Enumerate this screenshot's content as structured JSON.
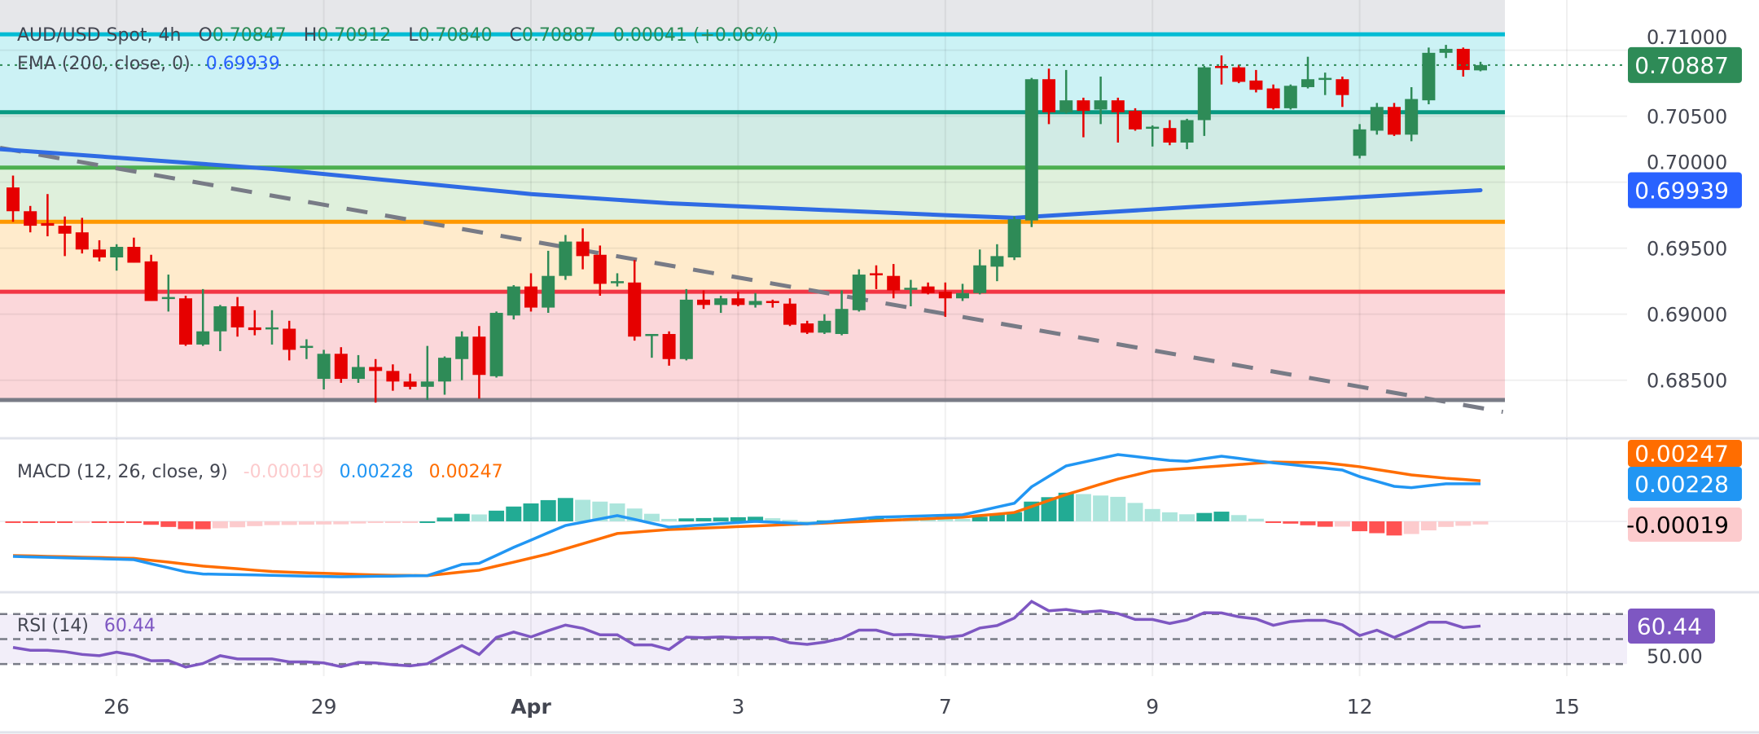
{
  "header": {
    "symbol": "AUD/USD Spot, 4h",
    "o_label": "O",
    "o_value": "0.70847",
    "h_label": "H",
    "h_value": "0.70912",
    "l_label": "L",
    "l_value": "0.70840",
    "c_label": "C",
    "c_value": "0.70887",
    "change": "0.00041 (+0.06%)"
  },
  "ema_legend": {
    "label": "EMA (200, close, 0)",
    "value": "0.69939"
  },
  "macd_legend": {
    "label": "MACD (12, 26, close, 9)",
    "hist": "-0.00019",
    "macd": "0.00228",
    "signal": "0.00247"
  },
  "rsi_legend": {
    "label": "RSI (14)",
    "value": "60.44"
  },
  "price_axis": {
    "ticks": [
      "0.71000",
      "0.70500",
      "0.70000",
      "0.69500",
      "0.69000",
      "0.68500"
    ],
    "last_price_label": "0.70887",
    "ema_label": "0.69939"
  },
  "macd_axis": {
    "signal_label": "0.00247",
    "macd_label": "0.00228",
    "hist_label": "-0.00019"
  },
  "rsi_axis": {
    "mid_tick": "50.00",
    "value_label": "60.44"
  },
  "time_axis": {
    "labels": [
      {
        "text": "26",
        "index": 6
      },
      {
        "text": "29",
        "index": 18
      },
      {
        "text": "Apr",
        "index": 30
      },
      {
        "text": "3",
        "index": 42
      },
      {
        "text": "7",
        "index": 54
      },
      {
        "text": "9",
        "index": 66
      },
      {
        "text": "12",
        "index": 78
      },
      {
        "text": "15",
        "index": 90
      }
    ]
  },
  "colors": {
    "up": "#2e8b57",
    "down": "#e60000",
    "ema": "#2f6be4",
    "trendline": "#787b86",
    "macd": "#2196f3",
    "signal": "#ff6d00",
    "rsi": "#7e57c2",
    "hist_up_strong": "#22ab94",
    "hist_up_weak": "#ace5dc",
    "hist_down_strong": "#ff5252",
    "hist_down_weak": "#fccbcd",
    "last_price_bg": "#2e8b57",
    "ema_bg": "#2962ff",
    "rsi_bg": "#7e57c2",
    "hist_bg": "#fccbcd"
  },
  "chart_data": [
    {
      "type": "candlestick",
      "title": "AUD/USD Spot, 4h",
      "ylim": [
        0.6806,
        0.7138
      ],
      "grid": true,
      "ohlc": [
        [
          0.6996,
          0.7005,
          0.697,
          0.6978
        ],
        [
          0.6978,
          0.6982,
          0.6962,
          0.6967
        ],
        [
          0.6969,
          0.6991,
          0.6959,
          0.6967
        ],
        [
          0.6967,
          0.6974,
          0.6944,
          0.6961
        ],
        [
          0.6962,
          0.6973,
          0.6946,
          0.6949
        ],
        [
          0.6949,
          0.6956,
          0.694,
          0.6943
        ],
        [
          0.6943,
          0.6953,
          0.6933,
          0.6951
        ],
        [
          0.6951,
          0.6958,
          0.6939,
          0.6939
        ],
        [
          0.694,
          0.6945,
          0.691,
          0.691
        ],
        [
          0.6912,
          0.693,
          0.6902,
          0.6913
        ],
        [
          0.6912,
          0.6914,
          0.6876,
          0.6877
        ],
        [
          0.6877,
          0.6919,
          0.6876,
          0.6887
        ],
        [
          0.6887,
          0.6907,
          0.6872,
          0.6906
        ],
        [
          0.6906,
          0.6913,
          0.6883,
          0.689
        ],
        [
          0.689,
          0.6903,
          0.6884,
          0.6888
        ],
        [
          0.6889,
          0.6903,
          0.6877,
          0.689
        ],
        [
          0.6889,
          0.6895,
          0.6865,
          0.6873
        ],
        [
          0.6875,
          0.6881,
          0.6866,
          0.6876
        ],
        [
          0.6851,
          0.6873,
          0.6843,
          0.687
        ],
        [
          0.687,
          0.6875,
          0.6848,
          0.6851
        ],
        [
          0.6851,
          0.6869,
          0.6848,
          0.686
        ],
        [
          0.686,
          0.6866,
          0.6833,
          0.6857
        ],
        [
          0.6857,
          0.6862,
          0.6842,
          0.6849
        ],
        [
          0.6849,
          0.6855,
          0.6843,
          0.6845
        ],
        [
          0.6845,
          0.6876,
          0.6835,
          0.6849
        ],
        [
          0.6849,
          0.6868,
          0.6839,
          0.6867
        ],
        [
          0.6866,
          0.6887,
          0.685,
          0.6883
        ],
        [
          0.6883,
          0.6891,
          0.6836,
          0.6854
        ],
        [
          0.6853,
          0.6902,
          0.6852,
          0.6901
        ],
        [
          0.6899,
          0.6922,
          0.6896,
          0.6921
        ],
        [
          0.6921,
          0.6931,
          0.6902,
          0.6905
        ],
        [
          0.6905,
          0.6948,
          0.6901,
          0.6929
        ],
        [
          0.6929,
          0.696,
          0.6926,
          0.6955
        ],
        [
          0.6955,
          0.6965,
          0.6934,
          0.6944
        ],
        [
          0.6945,
          0.6952,
          0.6914,
          0.6923
        ],
        [
          0.6924,
          0.6931,
          0.6921,
          0.6925
        ],
        [
          0.6924,
          0.6941,
          0.688,
          0.6883
        ],
        [
          0.6884,
          0.6885,
          0.6867,
          0.6885
        ],
        [
          0.6885,
          0.6887,
          0.6861,
          0.6866
        ],
        [
          0.6866,
          0.6919,
          0.6865,
          0.6911
        ],
        [
          0.6911,
          0.6918,
          0.6904,
          0.6907
        ],
        [
          0.6907,
          0.6914,
          0.6901,
          0.6912
        ],
        [
          0.6912,
          0.6917,
          0.6906,
          0.6907
        ],
        [
          0.6907,
          0.6916,
          0.6905,
          0.691
        ],
        [
          0.691,
          0.6911,
          0.6905,
          0.6909
        ],
        [
          0.6908,
          0.6912,
          0.6891,
          0.6892
        ],
        [
          0.6893,
          0.6895,
          0.6885,
          0.6886
        ],
        [
          0.6886,
          0.69,
          0.6885,
          0.6895
        ],
        [
          0.6885,
          0.6918,
          0.6884,
          0.6904
        ],
        [
          0.6903,
          0.6934,
          0.6902,
          0.693
        ],
        [
          0.6931,
          0.6937,
          0.6919,
          0.693
        ],
        [
          0.6929,
          0.6938,
          0.6912,
          0.6918
        ],
        [
          0.6919,
          0.6926,
          0.6906,
          0.692
        ],
        [
          0.6921,
          0.6924,
          0.6915,
          0.6916
        ],
        [
          0.6917,
          0.6924,
          0.6898,
          0.6912
        ],
        [
          0.6912,
          0.6923,
          0.691,
          0.6916
        ],
        [
          0.6916,
          0.6949,
          0.6915,
          0.6937
        ],
        [
          0.6936,
          0.6953,
          0.6925,
          0.6944
        ],
        [
          0.6943,
          0.6974,
          0.6941,
          0.6972
        ],
        [
          0.6971,
          0.7079,
          0.6966,
          0.7078
        ],
        [
          0.7078,
          0.7086,
          0.7044,
          0.7053
        ],
        [
          0.7053,
          0.7085,
          0.7052,
          0.7062
        ],
        [
          0.7062,
          0.7064,
          0.7034,
          0.7054
        ],
        [
          0.7055,
          0.708,
          0.7044,
          0.7062
        ],
        [
          0.7062,
          0.7064,
          0.703,
          0.7053
        ],
        [
          0.7054,
          0.7056,
          0.7039,
          0.704
        ],
        [
          0.7041,
          0.7043,
          0.7027,
          0.7042
        ],
        [
          0.7041,
          0.7047,
          0.7028,
          0.703
        ],
        [
          0.703,
          0.7048,
          0.7025,
          0.7047
        ],
        [
          0.7047,
          0.7088,
          0.7035,
          0.7087
        ],
        [
          0.7088,
          0.7096,
          0.7074,
          0.7087
        ],
        [
          0.7087,
          0.7089,
          0.7075,
          0.7076
        ],
        [
          0.7077,
          0.7085,
          0.7068,
          0.707
        ],
        [
          0.7071,
          0.7074,
          0.7055,
          0.7056
        ],
        [
          0.7056,
          0.7074,
          0.7055,
          0.7073
        ],
        [
          0.7072,
          0.7095,
          0.7071,
          0.7078
        ],
        [
          0.7078,
          0.7083,
          0.7066,
          0.7079
        ],
        [
          0.7078,
          0.708,
          0.7057,
          0.7066
        ],
        [
          0.702,
          0.7044,
          0.7018,
          0.704
        ],
        [
          0.7039,
          0.706,
          0.7036,
          0.7057
        ],
        [
          0.7057,
          0.706,
          0.7035,
          0.7036
        ],
        [
          0.7036,
          0.7072,
          0.7031,
          0.7063
        ],
        [
          0.7062,
          0.7102,
          0.7059,
          0.7098
        ],
        [
          0.7098,
          0.7104,
          0.7094,
          0.7101
        ],
        [
          0.7101,
          0.7102,
          0.708,
          0.7085
        ],
        [
          0.70847,
          0.70912,
          0.7084,
          0.70887
        ]
      ],
      "ema200": [
        [
          -0.75,
          0.7025
        ],
        [
          15,
          0.701
        ],
        [
          30,
          0.6991
        ],
        [
          38,
          0.6984
        ],
        [
          54,
          0.6975
        ],
        [
          58,
          0.6973
        ],
        [
          68,
          0.6981
        ],
        [
          81,
          0.6991
        ],
        [
          85,
          0.69939
        ]
      ],
      "trendline": [
        [
          -0.75,
          0.7026
        ],
        [
          86.3,
          0.6826
        ]
      ],
      "last_price": 0.70887,
      "fib_levels": [
        {
          "price": 0.7112,
          "color": "#00bcd4",
          "fill_above": "#e6e7ea"
        },
        {
          "price": 0.7053,
          "color": "#089981",
          "fill_above": "#ccf2f5"
        },
        {
          "price": 0.7011,
          "color": "#4caf50",
          "fill_above": "#d1ebe5"
        },
        {
          "price": 0.697,
          "color": "#ff9800",
          "fill_above": "#dff0dc"
        },
        {
          "price": 0.6917,
          "color": "#f23645",
          "fill_above": "#ffebcc"
        },
        {
          "price": 0.6835,
          "color": "#787b86",
          "fill_above": "#fbd7da"
        }
      ]
    },
    {
      "type": "macd",
      "ylim": [
        -0.00436,
        0.00505
      ],
      "macd": [
        -0.00213,
        -0.00216,
        -0.00219,
        -0.00222,
        -0.00224,
        -0.00227,
        -0.0023,
        -0.00233,
        -0.00258,
        -0.00282,
        -0.00307,
        -0.0032,
        -0.00322,
        -0.00324,
        -0.00326,
        -0.00328,
        -0.00331,
        -0.00333,
        -0.00335,
        -0.00337,
        -0.00336,
        -0.00334,
        -0.00333,
        -0.00331,
        -0.0033,
        -0.00296,
        -0.00262,
        -0.00255,
        -0.00207,
        -0.00158,
        -0.00114,
        -0.00069,
        -0.00025,
        -5e-05,
        0.00015,
        0.00035,
        0.00012,
        -0.00012,
        -0.00035,
        -0.00028,
        -0.00021,
        -0.00014,
        -7e-05,
        0,
        -5e-05,
        -0.0001,
        -0.00015,
        -5e-05,
        5e-05,
        0.00015,
        0.00025,
        0.00028,
        0.00031,
        0.00034,
        0.00037,
        0.0004,
        0.00063,
        0.00087,
        0.0011,
        0.0021,
        0.00274,
        0.00337,
        0.0036,
        0.00383,
        0.00406,
        0.00394,
        0.00382,
        0.0037,
        0.00365,
        0.00381,
        0.00396,
        0.00383,
        0.00369,
        0.00356,
        0.00345,
        0.00334,
        0.00323,
        0.00312,
        0.00272,
        0.00243,
        0.00213,
        0.00205,
        0.00217,
        0.00228,
        0.00228,
        0.00228
      ],
      "signal": [
        -0.00208,
        -0.0021,
        -0.00213,
        -0.00215,
        -0.00218,
        -0.0022,
        -0.00223,
        -0.00225,
        -0.00237,
        -0.00248,
        -0.0026,
        -0.00272,
        -0.0028,
        -0.00288,
        -0.00297,
        -0.00305,
        -0.00309,
        -0.00313,
        -0.00316,
        -0.00319,
        -0.00323,
        -0.00326,
        -0.00328,
        -0.00329,
        -0.0033,
        -0.00319,
        -0.00308,
        -0.00297,
        -0.00272,
        -0.00248,
        -0.00223,
        -0.00198,
        -0.00167,
        -0.00136,
        -0.00105,
        -0.00074,
        -0.00066,
        -0.00058,
        -0.0005,
        -0.00046,
        -0.00041,
        -0.00037,
        -0.00032,
        -0.00028,
        -0.00024,
        -0.00019,
        -0.00015,
        -0.00011,
        -6e-05,
        -2e-05,
        3e-05,
        7e-05,
        0.00012,
        0.00016,
        0.00021,
        0.00025,
        0.00035,
        0.00044,
        0.00054,
        0.0009,
        0.00127,
        0.00163,
        0.00194,
        0.00226,
        0.00257,
        0.00282,
        0.00307,
        0.00315,
        0.00322,
        0.0033,
        0.00337,
        0.00345,
        0.00353,
        0.00361,
        0.00359,
        0.00358,
        0.00356,
        0.00344,
        0.00332,
        0.00315,
        0.00299,
        0.00282,
        0.00272,
        0.00262,
        0.00255,
        0.00247
      ],
      "histogram": [
        -5e-05,
        -6e-05,
        -6e-05,
        -7e-05,
        -6e-05,
        -7e-05,
        -7e-05,
        -8e-05,
        -0.00021,
        -0.00034,
        -0.00047,
        -0.00048,
        -0.00042,
        -0.00036,
        -0.00029,
        -0.00023,
        -0.00022,
        -0.0002,
        -0.00019,
        -0.00018,
        -0.00013,
        -8e-05,
        -5e-05,
        -2e-05,
        0,
        0.00023,
        0.00046,
        0.00042,
        0.00065,
        0.0009,
        0.00109,
        0.00129,
        0.00142,
        0.00131,
        0.0012,
        0.00109,
        0.00078,
        0.00046,
        0.00015,
        0.00018,
        0.0002,
        0.00023,
        0.00025,
        0.00028,
        0.00019,
        9e-05,
        0,
        6e-05,
        0.00011,
        0.00017,
        0.00022,
        0.00021,
        0.00019,
        0.00018,
        0.00016,
        0.00015,
        0.00028,
        0.00043,
        0.00056,
        0.0012,
        0.00147,
        0.00174,
        0.00166,
        0.00157,
        0.00149,
        0.00112,
        0.00075,
        0.00055,
        0.00043,
        0.00051,
        0.00059,
        0.00038,
        0.00016,
        -5e-05,
        -0.00014,
        -0.00024,
        -0.00033,
        -0.00032,
        -0.0006,
        -0.00072,
        -0.00086,
        -0.00077,
        -0.00055,
        -0.00034,
        -0.00027,
        -0.00019
      ]
    },
    {
      "type": "line",
      "ylim": [
        20.3,
        86.8
      ],
      "bands": [
        30,
        50,
        70
      ],
      "rsi": [
        43.3,
        41,
        41,
        39.9,
        37.7,
        36.7,
        39.5,
        37.1,
        32.6,
        32.8,
        27.6,
        30.4,
        36.7,
        34.1,
        34.1,
        34.1,
        31.7,
        31.7,
        30.9,
        27.9,
        31.3,
        30.9,
        29.4,
        28.5,
        30.2,
        37.7,
        44.8,
        37.7,
        51.3,
        55.6,
        51.7,
        56.7,
        61.2,
        58.6,
        53.4,
        53.4,
        45.3,
        45.3,
        41.6,
        51.5,
        51.1,
        51.7,
        51.1,
        51.3,
        51.1,
        47,
        45.7,
        47.5,
        50.6,
        57.1,
        57.1,
        53.4,
        53.7,
        52.6,
        51.3,
        52.8,
        58.8,
        60.8,
        66.8,
        80.1,
        72.6,
        73.7,
        71.5,
        72.6,
        70.4,
        65.7,
        65.7,
        62.5,
        65.3,
        71.1,
        70.9,
        67.8,
        66.1,
        61,
        64,
        65,
        65,
        61.4,
        52.8,
        57.1,
        51.3,
        57.1,
        63.5,
        63.5,
        59.2,
        60.44
      ]
    }
  ]
}
